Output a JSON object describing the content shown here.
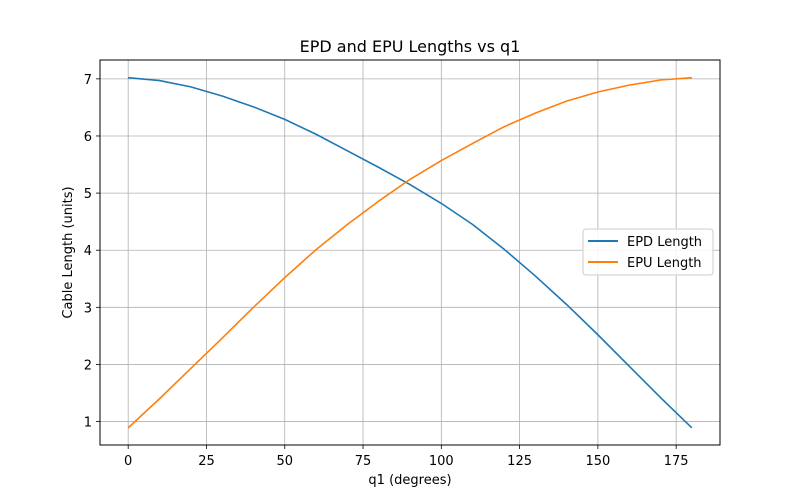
{
  "chart_data": {
    "type": "line",
    "title": "EPD and EPU Lengths vs q1",
    "xlabel": "q1 (degrees)",
    "ylabel": "Cable Length (units)",
    "xlim": [
      -9,
      189
    ],
    "ylim": [
      0.59,
      7.33
    ],
    "xticks": [
      0,
      25,
      50,
      75,
      100,
      125,
      150,
      175
    ],
    "yticks": [
      1,
      2,
      3,
      4,
      5,
      6,
      7
    ],
    "grid": true,
    "legend_position": "center-right",
    "series": [
      {
        "name": "EPD Length",
        "color": "#1f77b4",
        "x": [
          0,
          10,
          20,
          30,
          40,
          50,
          60,
          70,
          80,
          90,
          100,
          110,
          120,
          130,
          140,
          150,
          160,
          170,
          180
        ],
        "y": [
          7.02,
          6.97,
          6.86,
          6.7,
          6.51,
          6.29,
          6.03,
          5.74,
          5.45,
          5.15,
          4.82,
          4.45,
          4.02,
          3.55,
          3.05,
          2.52,
          1.97,
          1.42,
          0.89
        ]
      },
      {
        "name": "EPU Length",
        "color": "#ff7f0e",
        "x": [
          0,
          10,
          20,
          30,
          40,
          50,
          60,
          70,
          80,
          90,
          100,
          110,
          120,
          130,
          140,
          150,
          160,
          170,
          180
        ],
        "y": [
          0.89,
          1.4,
          1.93,
          2.46,
          3.0,
          3.52,
          4.01,
          4.45,
          4.86,
          5.24,
          5.57,
          5.87,
          6.16,
          6.4,
          6.61,
          6.77,
          6.89,
          6.98,
          7.02
        ]
      }
    ]
  }
}
